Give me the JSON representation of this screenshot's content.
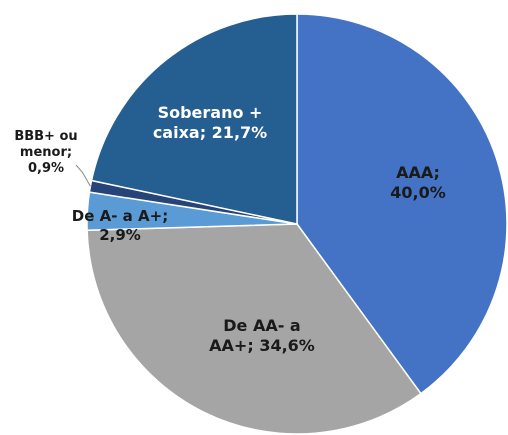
{
  "chart_data": {
    "type": "pie",
    "categories": [
      "AAA;",
      "De AA- a AA+;",
      "De A- a A+;",
      "BBB+ ou menor;",
      "Soberano + caixa;"
    ],
    "values": [
      40.0,
      34.6,
      2.9,
      0.9,
      21.7
    ],
    "value_labels": [
      "40,0%",
      "34,6%",
      "2,9%",
      "0,9%",
      "21,7%"
    ],
    "colors": [
      "#4472c4",
      "#a5a5a5",
      "#5b9bd5",
      "#264478",
      "#255e91"
    ]
  }
}
